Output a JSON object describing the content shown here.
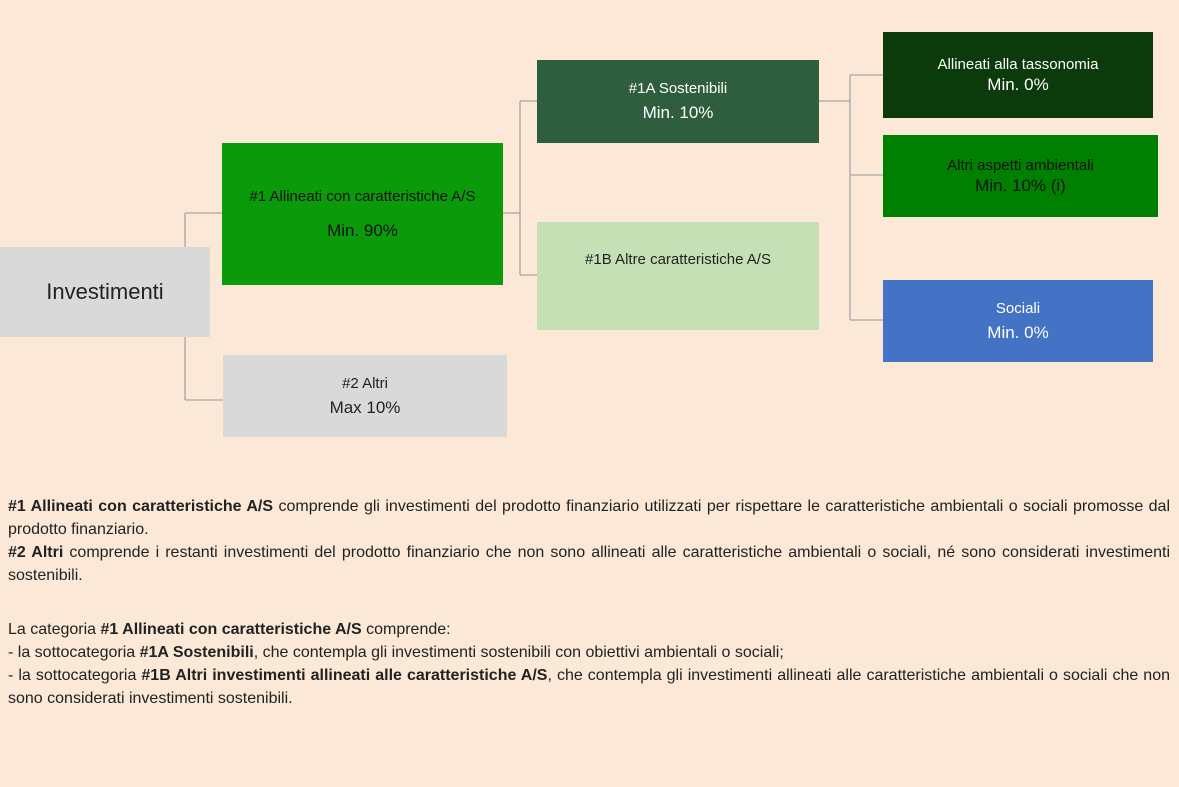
{
  "nodes": [
    {
      "label": "Investimenti"
    },
    {
      "label": "#1 Allineati con caratteristiche A/S",
      "value": "Min. 90%"
    },
    {
      "label": "#2 Altri",
      "value": "Max 10%"
    },
    {
      "label": "#1A Sostenibili",
      "value": "Min. 10%"
    },
    {
      "label": "#1B Altre caratteristiche A/S"
    },
    {
      "label": "Allineati alla tassonomia",
      "value": "Min. 0%"
    },
    {
      "label": "Altri aspetti ambientali",
      "value": "Min. 10% (i)"
    },
    {
      "label": "Sociali",
      "value": "Min. 0%"
    }
  ],
  "paragraphs": [
    [
      {
        "text": "#1 Allineati con caratteristiche A/S",
        "bold": true
      },
      {
        "text": " comprende gli investimenti del prodotto finanziario utilizzati per rispettare le caratteristiche ambientali o sociali promosse dal prodotto finanziario."
      }
    ],
    [
      {
        "text": "#2 Altri",
        "bold": true
      },
      {
        "text": " comprende i restanti investimenti del prodotto finanziario che non sono allineati alle caratteristiche ambientali o sociali, né sono considerati investimenti sostenibili."
      }
    ],
    [
      {
        "text": "La categoria "
      },
      {
        "text": "#1 Allineati con caratteristiche A/S",
        "bold": true
      },
      {
        "text": " comprende:"
      }
    ],
    [
      {
        "text": "- la sottocategoria "
      },
      {
        "text": "#1A Sostenibili",
        "bold": true
      },
      {
        "text": ", che contempla gli investimenti sostenibili con obiettivi ambientali o sociali;"
      }
    ],
    [
      {
        "text": "- la sottocategoria "
      },
      {
        "text": "#1B Altri investimenti allineati alle caratteristiche A/S",
        "bold": true
      },
      {
        "text": ", che contempla gli investimenti allineati alle caratteristiche ambientali o sociali che non sono considerati investimenti sostenibili."
      }
    ]
  ]
}
